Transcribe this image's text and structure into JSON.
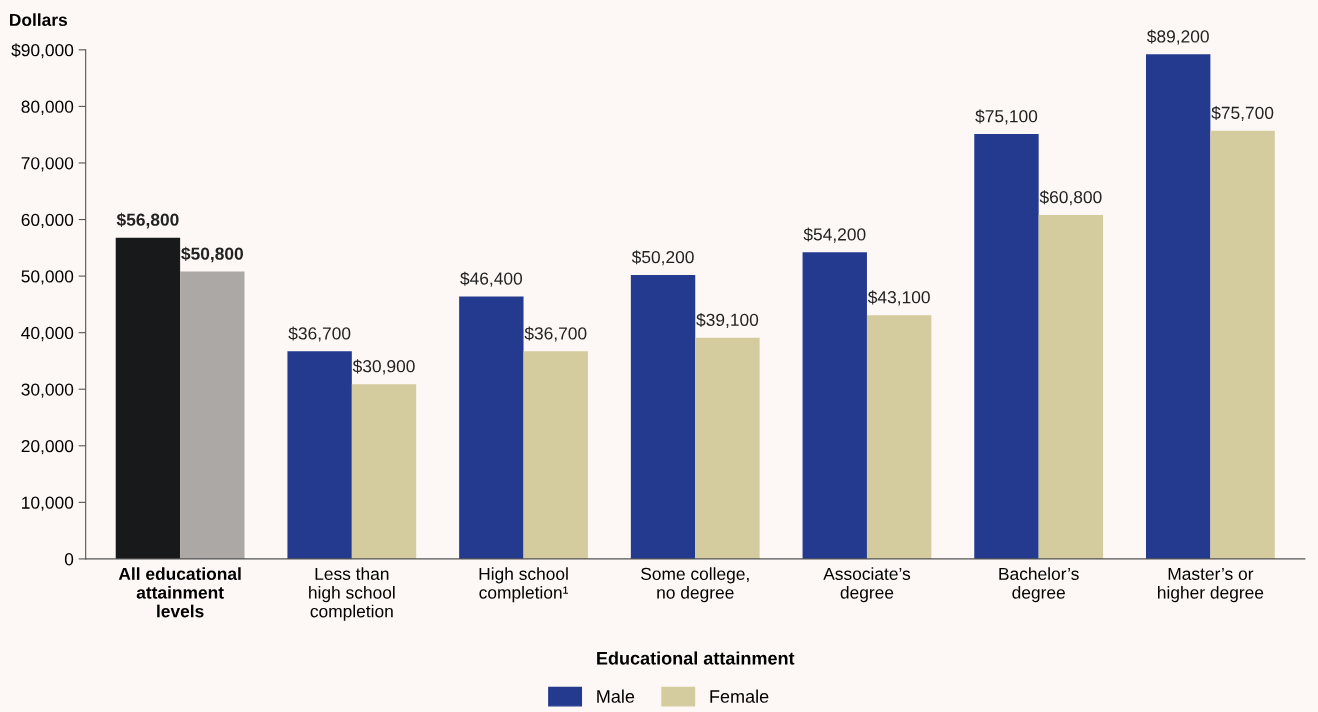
{
  "chart_data": {
    "type": "bar",
    "xlabel": "Educational attainment",
    "ylabel": "Dollars",
    "categories": [
      "All educational\nattainment\nlevels",
      "Less than\nhigh school\ncompletion",
      "High school\ncompletion¹",
      "Some college,\nno degree",
      "Associate’s\ndegree",
      "Bachelor’s\ndegree",
      "Master’s or\nhigher degree"
    ],
    "series": [
      {
        "name": "Male",
        "color": "#233a8f",
        "colors": [
          "#18191b",
          "#233a8f",
          "#233a8f",
          "#233a8f",
          "#233a8f",
          "#233a8f",
          "#233a8f"
        ],
        "values": [
          56800,
          36700,
          46400,
          50200,
          54200,
          75100,
          89200
        ],
        "value_labels": [
          "$56,800",
          "$36,700",
          "$46,400",
          "$50,200",
          "$54,200",
          "$75,100",
          "$89,200"
        ]
      },
      {
        "name": "Female",
        "color": "#d4cb9f",
        "colors": [
          "#aca8a6",
          "#d4cb9f",
          "#d4cb9f",
          "#d4cb9f",
          "#d4cb9f",
          "#d4cb9f",
          "#d4cb9f"
        ],
        "values": [
          50800,
          30900,
          36700,
          39100,
          43100,
          60800,
          75700
        ],
        "value_labels": [
          "$50,800",
          "$30,900",
          "$36,700",
          "$39,100",
          "$43,100",
          "$60,800",
          "$75,700"
        ]
      }
    ],
    "ylim": [
      0,
      90000
    ],
    "yticks": [
      0,
      {
        "value": 10000,
        "label": "10,000"
      },
      {
        "value": 20000,
        "label": "20,000"
      },
      {
        "value": 30000,
        "label": "30,000"
      },
      {
        "value": 40000,
        "label": "40,000"
      },
      {
        "value": 50000,
        "label": "50,000"
      },
      {
        "value": 60000,
        "label": "60,000"
      },
      {
        "value": 70000,
        "label": "70,000"
      },
      {
        "value": 80000,
        "label": "80,000"
      },
      {
        "value": 90000,
        "label": "$90,000"
      }
    ],
    "grid": false,
    "legend": "bottom"
  }
}
